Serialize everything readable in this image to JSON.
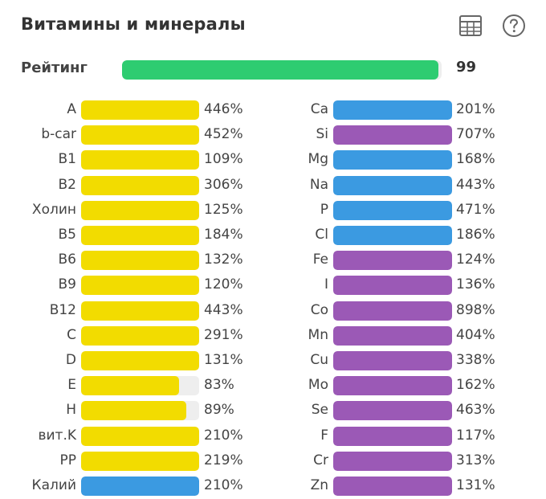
{
  "header": {
    "title": "Витамины и минералы",
    "table_icon": "table-icon",
    "help_icon": "help-icon"
  },
  "rating": {
    "label": "Рейтинг",
    "value": "99",
    "fraction": 0.99
  },
  "colors": {
    "yellow": "#f2dc00",
    "blue": "#3b9ae1",
    "purple": "#9b59b6",
    "green": "#2ecc71",
    "track": "#eeeeee"
  },
  "chart_data": {
    "type": "bar",
    "orientation": "horizontal",
    "unit": "%",
    "cap": 100,
    "groups": [
      {
        "items": [
          {
            "name": "A",
            "value": 446,
            "label": "446%",
            "color": "yellow"
          },
          {
            "name": "b-car",
            "value": 452,
            "label": "452%",
            "color": "yellow"
          },
          {
            "name": "B1",
            "value": 109,
            "label": "109%",
            "color": "yellow"
          },
          {
            "name": "B2",
            "value": 306,
            "label": "306%",
            "color": "yellow"
          },
          {
            "name": "Холин",
            "value": 125,
            "label": "125%",
            "color": "yellow"
          },
          {
            "name": "B5",
            "value": 184,
            "label": "184%",
            "color": "yellow"
          },
          {
            "name": "B6",
            "value": 132,
            "label": "132%",
            "color": "yellow"
          },
          {
            "name": "B9",
            "value": 120,
            "label": "120%",
            "color": "yellow"
          },
          {
            "name": "B12",
            "value": 443,
            "label": "443%",
            "color": "yellow"
          },
          {
            "name": "C",
            "value": 291,
            "label": "291%",
            "color": "yellow"
          },
          {
            "name": "D",
            "value": 131,
            "label": "131%",
            "color": "yellow"
          },
          {
            "name": "E",
            "value": 83,
            "label": "83%",
            "color": "yellow"
          },
          {
            "name": "H",
            "value": 89,
            "label": "89%",
            "color": "yellow"
          },
          {
            "name": "вит.K",
            "value": 210,
            "label": "210%",
            "color": "yellow"
          },
          {
            "name": "PP",
            "value": 219,
            "label": "219%",
            "color": "yellow"
          },
          {
            "name": "Калий",
            "value": 210,
            "label": "210%",
            "color": "blue"
          }
        ]
      },
      {
        "items": [
          {
            "name": "Ca",
            "value": 201,
            "label": "201%",
            "color": "blue"
          },
          {
            "name": "Si",
            "value": 707,
            "label": "707%",
            "color": "purple"
          },
          {
            "name": "Mg",
            "value": 168,
            "label": "168%",
            "color": "blue"
          },
          {
            "name": "Na",
            "value": 443,
            "label": "443%",
            "color": "blue"
          },
          {
            "name": "P",
            "value": 471,
            "label": "471%",
            "color": "blue"
          },
          {
            "name": "Cl",
            "value": 186,
            "label": "186%",
            "color": "blue"
          },
          {
            "name": "Fe",
            "value": 124,
            "label": "124%",
            "color": "purple"
          },
          {
            "name": "I",
            "value": 136,
            "label": "136%",
            "color": "purple"
          },
          {
            "name": "Co",
            "value": 898,
            "label": "898%",
            "color": "purple"
          },
          {
            "name": "Mn",
            "value": 404,
            "label": "404%",
            "color": "purple"
          },
          {
            "name": "Cu",
            "value": 338,
            "label": "338%",
            "color": "purple"
          },
          {
            "name": "Mo",
            "value": 162,
            "label": "162%",
            "color": "purple"
          },
          {
            "name": "Se",
            "value": 463,
            "label": "463%",
            "color": "purple"
          },
          {
            "name": "F",
            "value": 117,
            "label": "117%",
            "color": "purple"
          },
          {
            "name": "Cr",
            "value": 313,
            "label": "313%",
            "color": "purple"
          },
          {
            "name": "Zn",
            "value": 131,
            "label": "131%",
            "color": "purple"
          }
        ]
      }
    ]
  }
}
